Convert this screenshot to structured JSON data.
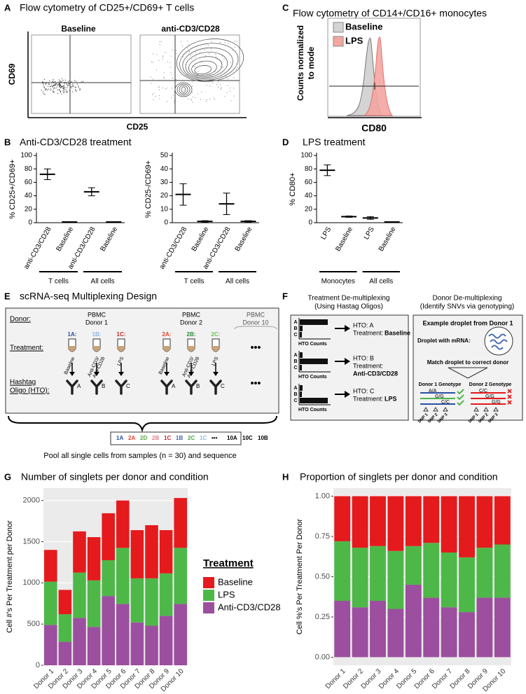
{
  "panel_a": {
    "label": "A",
    "title": "Flow cytometry of CD25+/CD69+ T cells",
    "plots": [
      "Baseline",
      "anti-CD3/CD28"
    ],
    "y_label": "CD69",
    "x_label": "CD25"
  },
  "panel_c": {
    "label": "C",
    "title": "Flow cytometry of CD14+/CD16+ monocytes",
    "y_label": [
      "Counts normalized",
      "to mode"
    ],
    "x_label": "CD80",
    "legend": [
      {
        "name": "Baseline",
        "color": "#d4d4d4"
      },
      {
        "name": "LPS",
        "color": "#f4a6a0"
      }
    ]
  },
  "panel_e": {
    "label": "E",
    "title": "scRNA-seq Multiplexing Design",
    "donor_label": "Donor:",
    "treatment_label": "Treatment:",
    "hto_label": [
      "Hashtag",
      "Oligo (HTO):"
    ],
    "donors": [
      {
        "name": [
          "PBMC",
          "Donor 1"
        ],
        "tubes": [
          {
            "id": "1A:",
            "color": "#2a4fa0",
            "treatment": [
              "Baseline"
            ],
            "hto": "A"
          },
          {
            "id": "1B:",
            "color": "#8fb8e0",
            "treatment": [
              "Anti-CD3/",
              "Anti-CD28"
            ],
            "hto": "B"
          },
          {
            "id": "1C:",
            "color": "#c0282d",
            "treatment": [
              "LPS"
            ],
            "hto": "C"
          }
        ]
      },
      {
        "name": [
          "PBMC",
          "Donor 2"
        ],
        "tubes": [
          {
            "id": "2A:",
            "color": "#e8442d",
            "treatment": [
              "Baseline"
            ],
            "hto": "A"
          },
          {
            "id": "2B:",
            "color": "#2e8b3a",
            "treatment": [
              "Anti-CD3/",
              "Anti-CD28"
            ],
            "hto": "B"
          },
          {
            "id": "2C:",
            "color": "#6cc25a",
            "treatment": [
              "LPS"
            ],
            "hto": "C"
          }
        ]
      }
    ],
    "last_donor": [
      "PBMC",
      "Donor 10"
    ],
    "more": "•••",
    "pool": [
      {
        "text": "1A",
        "color": "#2a4fa0"
      },
      {
        "text": "2A",
        "color": "#e8442d"
      },
      {
        "text": "2D",
        "color": "#5aa845"
      },
      {
        "text": "2B",
        "color": "#e07b8a"
      },
      {
        "text": "1C",
        "color": "#c0282d"
      },
      {
        "text": "1B",
        "color": "#3f63b0"
      },
      {
        "text": "2C",
        "color": "#4aa84a"
      },
      {
        "text": "1C",
        "color": "#8fb8e0"
      },
      {
        "text": "•••",
        "color": "#000000"
      },
      {
        "text": "10A",
        "color": "#000000"
      },
      {
        "text": "10C",
        "color": "#000000"
      },
      {
        "text": "10B",
        "color": "#000000"
      }
    ],
    "pool_caption": "Pool all single cells from samples (n = 30) and sequence"
  },
  "panel_f": {
    "label": "F",
    "left": {
      "title": [
        "Treatment De-multiplexing",
        "(Using Hastag Oligos)"
      ],
      "letters": [
        "A",
        "B",
        "C"
      ],
      "axis": "HTO Counts",
      "treatment_label": "Treatment:",
      "rows": [
        {
          "hto": "HTO: A",
          "treatment": "Baseline"
        },
        {
          "hto": "HTO: B",
          "treatment": "Anti-CD3/CD28"
        },
        {
          "hto": "HTO: C",
          "treatment": "LPS"
        }
      ]
    },
    "right": {
      "title": [
        "Donor De-multiplexing",
        "(Identify SNVs via genotyping)"
      ],
      "example": "Example droplet from Donor 1",
      "droplet": "Droplet with mRNA:",
      "match": "Match droplet to correct donor",
      "genotypes": [
        {
          "name": "Donor 1 Genotype",
          "alleles": [
            "A/A",
            "G/G",
            "C/C"
          ]
        },
        {
          "name": "Donor 2 Genotype",
          "alleles": [
            "C/C",
            "G/G",
            "G/G"
          ]
        }
      ],
      "snps": [
        "SNP 1",
        "SNP 2",
        "SNP 3"
      ]
    }
  },
  "chart_data": [
    {
      "type": "dot",
      "panel_label": "B",
      "title": "Anti-CD3/CD28 treatment",
      "y_label": "% CD25+/CD69+",
      "categories": [
        "anti-CD3/CD28",
        "Baseline",
        "anti-CD3/CD28",
        "Baseline"
      ],
      "values": [
        72,
        1,
        46,
        1
      ],
      "errors": [
        8,
        0.5,
        6,
        0.5
      ],
      "groups": [
        "T cells",
        "All cells"
      ],
      "ylim": [
        0,
        100
      ],
      "yticks": [
        0,
        20,
        40,
        60,
        80,
        100
      ],
      "color": "#000000"
    },
    {
      "type": "dot",
      "y_label": "% CD25-/CD69+",
      "categories": [
        "anti-CD3/CD28",
        "Baseline",
        "anti-CD3/CD28",
        "Baseline"
      ],
      "values": [
        21,
        1,
        14,
        1
      ],
      "errors": [
        8,
        0.5,
        8,
        0.5
      ],
      "groups": [
        "T cells",
        "All cells"
      ],
      "ylim": [
        0,
        50
      ],
      "yticks": [
        0,
        10,
        20,
        30,
        40,
        50
      ],
      "color": "#000000"
    },
    {
      "type": "dot",
      "panel_label": "D",
      "title": "LPS treatment",
      "y_label": "% CD80+",
      "categories": [
        "LPS",
        "Baseline",
        "LPS",
        "Baseline"
      ],
      "values": [
        78,
        9,
        7,
        1
      ],
      "errors": [
        8,
        1,
        2,
        0.5
      ],
      "groups": [
        "Monocytes",
        "All cells"
      ],
      "ylim": [
        0,
        100
      ],
      "yticks": [
        0,
        20,
        40,
        60,
        80,
        100
      ],
      "color": "#000000"
    },
    {
      "type": "stacked_bar",
      "panel_label": "G",
      "title": "Number of singlets per donor and condition",
      "y_label": "Cell #'s Per Treatment per Donor",
      "legend_title": "Treatment",
      "legend": "right",
      "grid": true,
      "categories": [
        "Donor 1",
        "Donor 2",
        "Donor 3",
        "Donor 4",
        "Donor 5",
        "Donor 6",
        "Donor 7",
        "Donor 8",
        "Donor 9",
        "Donor 10"
      ],
      "series": [
        {
          "name": "Anti-CD3/CD28",
          "color": "#9b4f9e",
          "values": [
            490,
            285,
            575,
            465,
            840,
            745,
            520,
            480,
            600,
            745
          ]
        },
        {
          "name": "LPS",
          "color": "#4db848",
          "values": [
            525,
            335,
            550,
            565,
            435,
            680,
            535,
            575,
            515,
            680
          ]
        },
        {
          "name": "Baseline",
          "color": "#e41a1c",
          "values": [
            385,
            295,
            500,
            525,
            570,
            575,
            585,
            645,
            525,
            605
          ]
        }
      ],
      "ylim": [
        0,
        2150
      ],
      "yticks": [
        0,
        500,
        1000,
        1500,
        2000
      ]
    },
    {
      "type": "stacked_bar",
      "panel_label": "H",
      "title": "Proportion of singlets per donor and condition",
      "y_label": "Cell %'s Per Treatment Per Donor",
      "grid": true,
      "categories": [
        "Donor 1",
        "Donor 2",
        "Donor 3",
        "Donor 4",
        "Donor 5",
        "Donor 6",
        "Donor 7",
        "Donor 8",
        "Donor 9",
        "Donor 10"
      ],
      "series": [
        {
          "name": "Anti-CD3/CD28",
          "color": "#9b4f9e",
          "values": [
            0.35,
            0.31,
            0.35,
            0.3,
            0.45,
            0.37,
            0.31,
            0.28,
            0.37,
            0.37
          ]
        },
        {
          "name": "LPS",
          "color": "#4db848",
          "values": [
            0.37,
            0.37,
            0.34,
            0.36,
            0.24,
            0.34,
            0.34,
            0.34,
            0.31,
            0.33
          ]
        },
        {
          "name": "Baseline",
          "color": "#e41a1c",
          "values": [
            0.28,
            0.32,
            0.31,
            0.34,
            0.31,
            0.29,
            0.35,
            0.38,
            0.32,
            0.3
          ]
        }
      ],
      "ylim": [
        -0.05,
        1.05
      ],
      "yticks": [
        {
          "value": 0,
          "label": "0.00"
        },
        {
          "value": 0.25,
          "label": "0.25"
        },
        {
          "value": 0.5,
          "label": "0.50"
        },
        {
          "value": 0.75,
          "label": "0.75"
        },
        {
          "value": 1,
          "label": "1.00"
        }
      ]
    }
  ]
}
